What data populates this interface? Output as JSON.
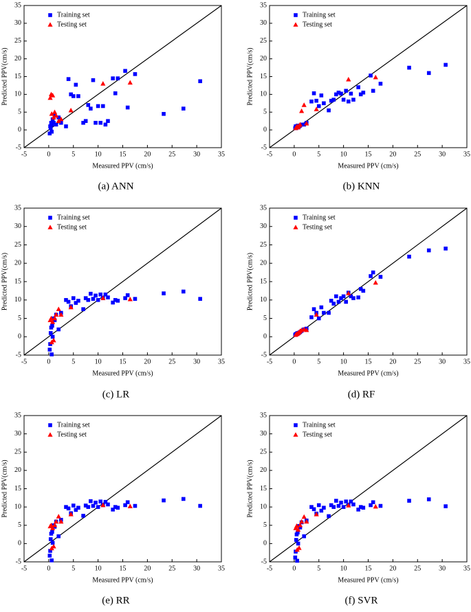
{
  "chart_data": [
    {
      "type": "scatter",
      "caption": "(a) ANN",
      "x_label": "Measured PPV (cm/s)",
      "y_label": "Predicted PPV(cm/s)",
      "xlim": [
        -5,
        35
      ],
      "ylim": [
        -5,
        35
      ],
      "xticks": [
        -5,
        0,
        5,
        10,
        15,
        20,
        25,
        30,
        35
      ],
      "yticks": [
        -5,
        0,
        5,
        10,
        15,
        20,
        25,
        30,
        35
      ],
      "legend": "upper left",
      "series": [
        {
          "name": "Training set",
          "color": "#0000ff",
          "marker": "square",
          "x": [
            0.2,
            0.3,
            0.4,
            0.5,
            0.6,
            0.7,
            0.8,
            1,
            1.2,
            1.5,
            2,
            2.5,
            3.5,
            4,
            4.5,
            5,
            5.5,
            6,
            7,
            7.5,
            8,
            8.5,
            9,
            9.5,
            10,
            10.5,
            11,
            11.5,
            12,
            13,
            13.5,
            14,
            15.5,
            16,
            17.5,
            23.3,
            27.3,
            30.7
          ],
          "values": [
            -1,
            1,
            0.5,
            2,
            -0.5,
            1.5,
            3,
            2,
            4,
            1.5,
            3.5,
            2,
            1,
            14.3,
            10,
            9.5,
            12.7,
            9.5,
            2,
            2.5,
            7,
            6,
            14,
            2,
            6.7,
            2,
            6.7,
            1.5,
            2.5,
            14.5,
            10.3,
            14.5,
            16.6,
            6.3,
            15.7,
            4.5,
            6,
            13.7
          ]
        },
        {
          "name": "Testing set",
          "color": "#ff0000",
          "marker": "triangle",
          "x": [
            0.3,
            0.5,
            0.6,
            0.8,
            1,
            1.2,
            1.5,
            2,
            2.5,
            4.5,
            11,
            16.5
          ],
          "values": [
            9,
            10,
            4.5,
            9.7,
            3.5,
            5,
            4,
            2.5,
            3,
            5.5,
            13,
            13.3
          ]
        }
      ]
    },
    {
      "type": "scatter",
      "caption": "(b) KNN",
      "x_label": "Measured PPV (cm/s)",
      "y_label": "Predicted PPV(cm/s)",
      "xlim": [
        -5,
        35
      ],
      "ylim": [
        -5,
        35
      ],
      "xticks": [
        -5,
        0,
        5,
        10,
        15,
        20,
        25,
        30,
        35
      ],
      "yticks": [
        -5,
        0,
        5,
        10,
        15,
        20,
        25,
        30,
        35
      ],
      "legend": "upper left",
      "series": [
        {
          "name": "Training set",
          "color": "#0000ff",
          "marker": "square",
          "x": [
            0.2,
            0.3,
            0.4,
            0.5,
            0.6,
            0.7,
            0.8,
            1,
            1.2,
            1.5,
            2,
            2.5,
            3.5,
            4,
            4.5,
            5,
            5.5,
            6,
            7,
            7.5,
            8,
            8.5,
            9,
            9.5,
            10,
            10.5,
            11,
            11.5,
            12,
            13,
            13.5,
            14,
            15.5,
            16,
            17.5,
            23.3,
            27.3,
            30.7
          ],
          "values": [
            0.5,
            1,
            0.5,
            0.8,
            1,
            1.2,
            0.7,
            1,
            1.2,
            1.5,
            1.5,
            2,
            8,
            10.3,
            8.2,
            6.7,
            9.7,
            7.5,
            5.5,
            8.2,
            8.5,
            10,
            10.5,
            10.2,
            8.5,
            11,
            8,
            10.2,
            8.5,
            12,
            10,
            10.5,
            15.3,
            11,
            13,
            17.5,
            16,
            18.3
          ]
        },
        {
          "name": "Testing set",
          "color": "#ff0000",
          "marker": "triangle",
          "x": [
            0.3,
            0.5,
            0.6,
            0.8,
            1,
            1.2,
            1.5,
            2,
            2.5,
            4.5,
            11,
            16.5
          ],
          "values": [
            0.5,
            0.8,
            1,
            0.7,
            1.2,
            1.5,
            5.3,
            7,
            1.8,
            5.8,
            14.2,
            14.8
          ]
        }
      ]
    },
    {
      "type": "scatter",
      "caption": "(c) LR",
      "x_label": "Measured PPV (cm/s)",
      "y_label": "Predicted PPV(cm/s)",
      "xlim": [
        -5,
        35
      ],
      "ylim": [
        -5,
        35
      ],
      "xticks": [
        -5,
        0,
        5,
        10,
        15,
        20,
        25,
        30,
        35
      ],
      "yticks": [
        -5,
        0,
        5,
        10,
        15,
        20,
        25,
        30,
        35
      ],
      "legend": "upper left",
      "series": [
        {
          "name": "Training set",
          "color": "#0000ff",
          "marker": "square",
          "x": [
            0.2,
            0.3,
            0.4,
            0.5,
            0.6,
            0.7,
            0.8,
            1,
            1.2,
            1.5,
            2,
            2.5,
            3.5,
            4,
            4.5,
            5,
            5.5,
            6,
            7,
            7.5,
            8,
            8.5,
            9,
            9.5,
            10,
            10.5,
            11,
            11.5,
            12,
            13,
            13.5,
            14,
            15.5,
            16,
            17.5,
            23.3,
            27.3,
            30.7
          ],
          "values": [
            -3.5,
            -2,
            1,
            2.5,
            -4.8,
            3,
            0,
            5,
            4.5,
            6,
            2,
            6.5,
            10,
            9.5,
            8.3,
            10.5,
            9.2,
            9.8,
            7.5,
            10.5,
            10,
            11.7,
            10.3,
            11.2,
            10,
            11.5,
            10.5,
            11.5,
            10.7,
            9.3,
            10,
            9.8,
            10.5,
            11.3,
            10.3,
            11.8,
            12.3,
            10.3
          ]
        },
        {
          "name": "Testing set",
          "color": "#ff0000",
          "marker": "triangle",
          "x": [
            0.3,
            0.5,
            0.6,
            0.8,
            1,
            1.2,
            1.5,
            2,
            2.5,
            4.5,
            11,
            16.5
          ],
          "values": [
            4.5,
            5,
            -1.5,
            4,
            -1,
            5,
            6,
            7.5,
            6,
            8,
            10.5,
            10.2
          ]
        }
      ]
    },
    {
      "type": "scatter",
      "caption": "(d) RF",
      "x_label": "Measured PPV (cm/s)",
      "y_label": "Predicted PPV(cm/s)",
      "xlim": [
        -5,
        35
      ],
      "ylim": [
        -5,
        35
      ],
      "xticks": [
        -5,
        0,
        5,
        10,
        15,
        20,
        25,
        30,
        35
      ],
      "yticks": [
        -5,
        0,
        5,
        10,
        15,
        20,
        25,
        30,
        35
      ],
      "legend": "upper left",
      "series": [
        {
          "name": "Training set",
          "color": "#0000ff",
          "marker": "square",
          "x": [
            0.2,
            0.3,
            0.4,
            0.5,
            0.6,
            0.7,
            0.8,
            1,
            1.2,
            1.5,
            2,
            2.5,
            3.5,
            4,
            4.5,
            5,
            5.5,
            6,
            7,
            7.5,
            8,
            8.5,
            9,
            9.5,
            10,
            10.5,
            11,
            11.5,
            12,
            13,
            13.5,
            14,
            15.5,
            16,
            17.5,
            23.3,
            27.3,
            30.7
          ],
          "values": [
            0.5,
            0.7,
            0.6,
            0.8,
            0.9,
            1,
            0.9,
            1.1,
            1.3,
            1.6,
            2,
            2.2,
            5.3,
            7.5,
            6.5,
            5,
            8,
            6.5,
            6.5,
            9.8,
            9,
            11,
            9.5,
            10.5,
            11,
            9.5,
            12,
            11,
            10.5,
            10.7,
            13,
            12.5,
            16.5,
            17.5,
            16.3,
            21.8,
            23.5,
            24
          ]
        },
        {
          "name": "Testing set",
          "color": "#ff0000",
          "marker": "triangle",
          "x": [
            0.3,
            0.5,
            0.6,
            0.8,
            1,
            1.2,
            1.5,
            2,
            2.5,
            4.5,
            11,
            16.5
          ],
          "values": [
            0.5,
            0.8,
            0.7,
            1,
            1.2,
            1.5,
            1.8,
            2,
            1.8,
            6,
            11.8,
            14.7
          ]
        }
      ]
    },
    {
      "type": "scatter",
      "caption": "(e) RR",
      "x_label": "Measured PPV (cm/s)",
      "y_label": "Predicted PPV(cm/s)",
      "xlim": [
        -5,
        35
      ],
      "ylim": [
        -5,
        35
      ],
      "xticks": [
        -5,
        0,
        5,
        10,
        15,
        20,
        25,
        30,
        35
      ],
      "yticks": [
        -5,
        0,
        5,
        10,
        15,
        20,
        25,
        30,
        35
      ],
      "legend": "upper left",
      "series": [
        {
          "name": "Training set",
          "color": "#0000ff",
          "marker": "square",
          "x": [
            0.2,
            0.3,
            0.4,
            0.5,
            0.6,
            0.7,
            0.8,
            1,
            1.2,
            1.5,
            2,
            2.5,
            3.5,
            4,
            4.5,
            5,
            5.5,
            6,
            7,
            7.5,
            8,
            8.5,
            9,
            9.5,
            10,
            10.5,
            11,
            11.5,
            12,
            13,
            13.5,
            14,
            15.5,
            16,
            17.5,
            23.3,
            27.3,
            30.7
          ],
          "values": [
            -3.3,
            -2,
            1.2,
            2.7,
            -4.6,
            3.2,
            0.2,
            5,
            4.6,
            6,
            2,
            6.5,
            10,
            9.6,
            8.3,
            10.4,
            9.2,
            9.8,
            7.6,
            10.4,
            10,
            11.6,
            10.3,
            11.2,
            10,
            11.5,
            10.5,
            11.4,
            10.7,
            9.3,
            10,
            9.8,
            10.5,
            11.3,
            10.3,
            11.8,
            12.2,
            10.3
          ]
        },
        {
          "name": "Testing set",
          "color": "#ff0000",
          "marker": "triangle",
          "x": [
            0.3,
            0.5,
            0.6,
            0.8,
            1,
            1.2,
            1.5,
            2,
            2.5,
            4.5,
            11,
            16.5
          ],
          "values": [
            4.7,
            5,
            -1.3,
            4.2,
            -0.8,
            5,
            6,
            7.4,
            6,
            8,
            10.5,
            10.2
          ]
        }
      ]
    },
    {
      "type": "scatter",
      "caption": "(f) SVR",
      "x_label": "Measured PPV (cm/s)",
      "y_label": "Predicted PPV(cm/s)",
      "xlim": [
        -5,
        35
      ],
      "ylim": [
        -5,
        35
      ],
      "xticks": [
        -5,
        0,
        5,
        10,
        15,
        20,
        25,
        30,
        35
      ],
      "yticks": [
        -5,
        0,
        5,
        10,
        15,
        20,
        25,
        30,
        35
      ],
      "legend": "upper left",
      "series": [
        {
          "name": "Training set",
          "color": "#0000ff",
          "marker": "square",
          "x": [
            0.2,
            0.3,
            0.4,
            0.5,
            0.6,
            0.7,
            0.8,
            1,
            1.2,
            1.5,
            2,
            2.5,
            3.5,
            4,
            4.5,
            5,
            5.5,
            6,
            7,
            7.5,
            8,
            8.5,
            9,
            9.5,
            10,
            10.5,
            11,
            11.5,
            12,
            13,
            13.5,
            14,
            15.5,
            16,
            17.5,
            23.3,
            27.3,
            30.7
          ],
          "values": [
            -3.8,
            -2.2,
            1,
            2.5,
            -4.7,
            3,
            0,
            4.8,
            4.4,
            5.8,
            2,
            6.3,
            10,
            9.4,
            8.2,
            10.5,
            9,
            9.8,
            7.5,
            10.5,
            10,
            11.7,
            10.3,
            11.2,
            10,
            11.5,
            10.5,
            11.5,
            10.7,
            9.3,
            10,
            9.8,
            10.5,
            11.3,
            10.3,
            11.7,
            12.1,
            10.2
          ]
        },
        {
          "name": "Testing set",
          "color": "#ff0000",
          "marker": "triangle",
          "x": [
            0.3,
            0.5,
            0.6,
            0.8,
            1,
            1.2,
            1.5,
            2,
            2.5,
            4.5,
            11,
            16.5
          ],
          "values": [
            4.2,
            4.8,
            -1.7,
            3.8,
            -1.2,
            5,
            6,
            7.3,
            6,
            8,
            10.4,
            10.1
          ]
        }
      ]
    }
  ]
}
